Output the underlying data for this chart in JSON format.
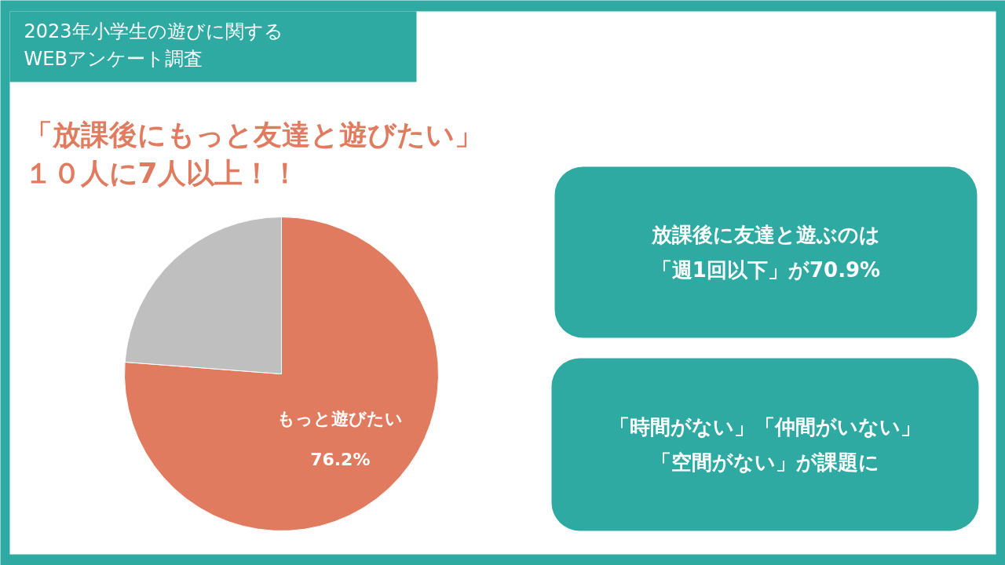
{
  "chart_data": {
    "type": "pie",
    "title": "2023年小学生の遊びに関する\nWEBアンケート調査",
    "subtitle": "「放課後にもっと友達と遊びたい」１０人に7人以上！！",
    "categories": [
      "もっと遊びたい",
      null
    ],
    "values": [
      76.2,
      23.8
    ],
    "colors": [
      "#e07b5f",
      "#bfbfbf"
    ],
    "value_labels": [
      "76.2%",
      null
    ],
    "legend": false,
    "annotations": [
      "放課後に友達と遊ぶのは「週1回以下」が70.9%",
      "「時間がない」「仲間がいない」「空間がない」が課題に"
    ]
  }
}
